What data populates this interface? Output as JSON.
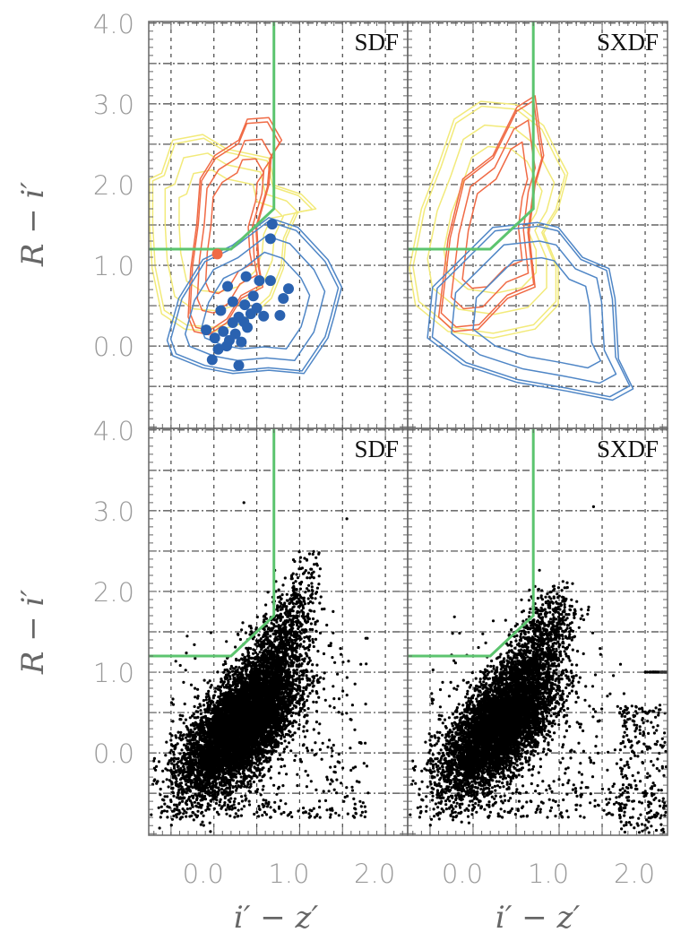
{
  "chart_data": {
    "type": "scatter",
    "xlabel": "i′ − z′",
    "ylabel": "R − i′",
    "xlim": [
      -0.76,
      2.26
    ],
    "ylim": [
      -1.02,
      4.02
    ],
    "x_ticks": [
      "0.0",
      "1.0",
      "2.0"
    ],
    "x_tick_values": [
      0,
      1,
      2
    ],
    "y_ticks": [
      "4.0",
      "3.0",
      "2.0",
      "1.0",
      "0.0"
    ],
    "y_tick_values": [
      4,
      3,
      2,
      1,
      0
    ],
    "grid": true,
    "colors": {
      "selection": "#5cc46f",
      "blue": "#2a62b0",
      "blue_contour": "#4f86c6",
      "red": "#f06a45",
      "yellow": "#f2ea7a",
      "cloud": "#000000"
    },
    "selection_boundary": [
      [
        -0.76,
        1.2
      ],
      [
        0.2,
        1.2
      ],
      [
        0.7,
        1.7
      ],
      [
        0.7,
        4.02
      ]
    ],
    "panels": [
      {
        "label": "SDF",
        "row": "top",
        "contours": {
          "yellow": [
            [
              -0.75,
              2.07
            ],
            [
              -0.61,
              2.14
            ],
            [
              -0.48,
              2.55
            ],
            [
              -0.13,
              2.62
            ],
            [
              0.15,
              2.44
            ],
            [
              0.64,
              2.33
            ],
            [
              0.71,
              1.99
            ],
            [
              1.02,
              1.88
            ],
            [
              1.19,
              1.7
            ],
            [
              0.98,
              1.66
            ],
            [
              0.84,
              1.33
            ],
            [
              0.81,
              0.96
            ],
            [
              0.67,
              0.59
            ],
            [
              0.36,
              0.29
            ],
            [
              0.01,
              0.18
            ],
            [
              -0.34,
              0.21
            ],
            [
              -0.61,
              0.4
            ],
            [
              -0.72,
              0.96
            ],
            [
              -0.75,
              1.51
            ]
          ],
          "red": [
            [
              -0.3,
              0.36
            ],
            [
              -0.27,
              0.96
            ],
            [
              -0.2,
              1.51
            ],
            [
              -0.16,
              2.07
            ],
            [
              0.01,
              2.36
            ],
            [
              0.29,
              2.55
            ],
            [
              0.39,
              2.81
            ],
            [
              0.64,
              2.83
            ],
            [
              0.79,
              2.55
            ],
            [
              0.67,
              2.36
            ],
            [
              0.64,
              1.99
            ],
            [
              0.5,
              1.47
            ],
            [
              0.53,
              0.96
            ],
            [
              0.57,
              0.73
            ],
            [
              0.32,
              0.59
            ],
            [
              0.15,
              0.29
            ],
            [
              -0.06,
              0.14
            ],
            [
              -0.23,
              0.18
            ]
          ],
          "blue": [
            [
              -0.545,
              0.07
            ],
            [
              -0.41,
              0.59
            ],
            [
              -0.13,
              1.07
            ],
            [
              0.22,
              1.25
            ],
            [
              0.64,
              1.59
            ],
            [
              0.98,
              1.47
            ],
            [
              1.33,
              1.07
            ],
            [
              1.49,
              0.73
            ],
            [
              1.4,
              0.36
            ],
            [
              1.33,
              0.1
            ],
            [
              1.05,
              -0.34
            ],
            [
              0.64,
              -0.3
            ],
            [
              0.22,
              -0.34
            ],
            [
              -0.13,
              -0.27
            ],
            [
              -0.48,
              -0.12
            ]
          ]
        },
        "blue_points": [
          [
            0.68,
            1.51
          ],
          [
            0.66,
            1.33
          ],
          [
            0.375,
            0.86
          ],
          [
            0.53,
            0.81
          ],
          [
            0.66,
            0.81
          ],
          [
            0.16,
            0.74
          ],
          [
            0.87,
            0.71
          ],
          [
            0.81,
            0.59
          ],
          [
            0.46,
            0.62
          ],
          [
            0.22,
            0.55
          ],
          [
            0.36,
            0.51
          ],
          [
            0.08,
            0.44
          ],
          [
            0.5,
            0.47
          ],
          [
            0.58,
            0.37
          ],
          [
            0.77,
            0.38
          ],
          [
            0.29,
            0.36
          ],
          [
            0.39,
            0.23
          ],
          [
            -0.09,
            0.2
          ],
          [
            0.01,
            0.1
          ],
          [
            0.11,
            0.18
          ],
          [
            0.18,
            0.07
          ],
          [
            0.32,
            0.05
          ],
          [
            0.05,
            -0.04
          ],
          [
            -0.02,
            -0.17
          ],
          [
            0.29,
            -0.24
          ],
          [
            0.22,
            0.29
          ],
          [
            0.43,
            0.4
          ],
          [
            0.25,
            0.15
          ],
          [
            0.35,
            0.3
          ],
          [
            0.15,
            0.0
          ]
        ],
        "red_points": [
          [
            0.04,
            1.14
          ]
        ]
      },
      {
        "label": "SXDF",
        "row": "top",
        "contours": {
          "yellow": [
            [
              -0.74,
              0.96
            ],
            [
              -0.6,
              1.7
            ],
            [
              -0.4,
              2.25
            ],
            [
              -0.22,
              2.81
            ],
            [
              0.09,
              3.03
            ],
            [
              0.51,
              2.99
            ],
            [
              0.82,
              2.73
            ],
            [
              0.99,
              2.36
            ],
            [
              1.1,
              2.14
            ],
            [
              0.99,
              1.7
            ],
            [
              0.82,
              1.4
            ],
            [
              0.99,
              0.96
            ],
            [
              0.99,
              0.51
            ],
            [
              0.72,
              0.21
            ],
            [
              0.23,
              0.1
            ],
            [
              -0.29,
              0.18
            ],
            [
              -0.67,
              0.51
            ]
          ],
          "red": [
            [
              -0.4,
              0.36
            ],
            [
              -0.29,
              1.33
            ],
            [
              -0.12,
              2.07
            ],
            [
              0.23,
              2.36
            ],
            [
              0.51,
              2.96
            ],
            [
              0.72,
              3.1
            ],
            [
              0.78,
              2.62
            ],
            [
              0.82,
              2.36
            ],
            [
              0.72,
              1.99
            ],
            [
              0.65,
              1.4
            ],
            [
              0.72,
              0.73
            ],
            [
              0.4,
              0.59
            ],
            [
              0.06,
              0.21
            ],
            [
              -0.22,
              0.18
            ]
          ],
          "blue": [
            [
              -0.53,
              0.1
            ],
            [
              -0.47,
              0.73
            ],
            [
              0.23,
              1.47
            ],
            [
              0.75,
              1.53
            ],
            [
              0.99,
              1.47
            ],
            [
              1.27,
              1.1
            ],
            [
              1.58,
              0.96
            ],
            [
              1.65,
              0.59
            ],
            [
              1.69,
              -0.16
            ],
            [
              1.86,
              -0.53
            ],
            [
              1.62,
              -0.67
            ],
            [
              1.1,
              -0.56
            ],
            [
              0.51,
              -0.45
            ],
            [
              -0.12,
              -0.23
            ]
          ]
        },
        "blue_points": [],
        "red_points": []
      },
      {
        "label": "SDF",
        "row": "bottom"
      },
      {
        "label": "SXDF",
        "row": "bottom"
      }
    ]
  }
}
